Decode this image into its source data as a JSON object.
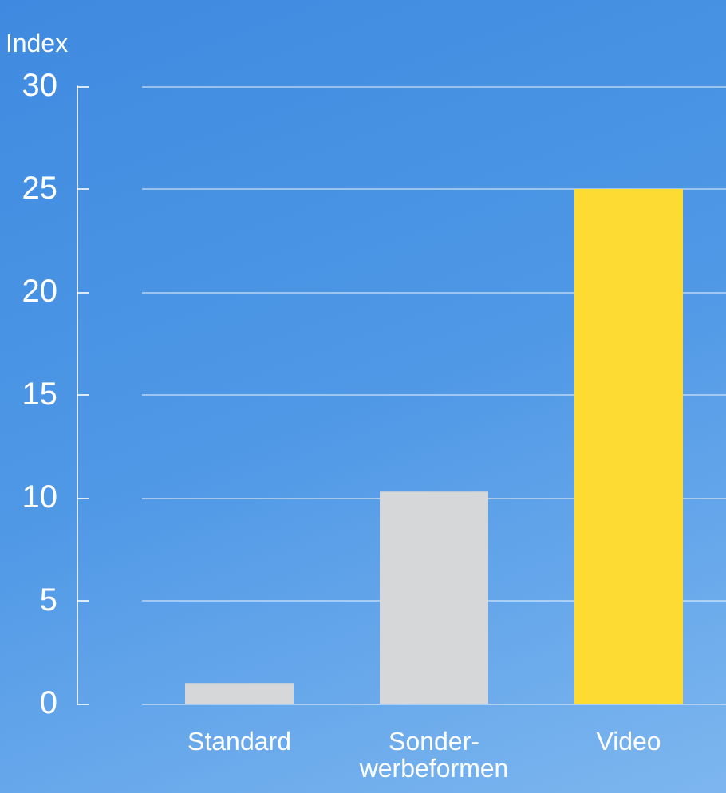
{
  "chart_data": {
    "type": "bar",
    "ylabel": "Index",
    "categories": [
      "Standard",
      "Sonder-\nwerbeformen",
      "Video"
    ],
    "values": [
      1,
      10.3,
      25
    ],
    "colors": [
      "#d6d7d8",
      "#d6d7d8",
      "#fedb32"
    ],
    "ylim": [
      0,
      30
    ],
    "yticks": [
      0,
      5,
      10,
      15,
      20,
      25,
      30
    ],
    "grid": "y"
  }
}
